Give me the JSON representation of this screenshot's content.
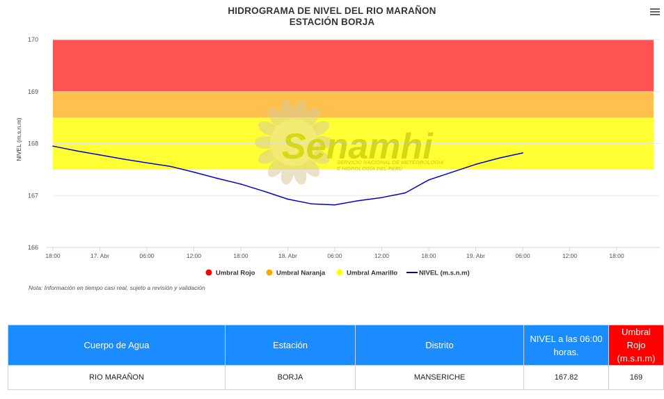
{
  "header": {
    "title_line1": "HIDROGRAMA DE NIVEL DEL RIO MARAÑON",
    "title_line2": "ESTACIÓN BORJA",
    "menu_icon": "hamburger-menu-icon"
  },
  "chart_data": {
    "type": "line",
    "ylabel": "NIVEL (m.s.n.m)",
    "ylim": [
      166,
      170
    ],
    "y_ticks": [
      "166",
      "167",
      "168",
      "169",
      "170"
    ],
    "x_range": [
      "2024-04-16 18:00",
      "2024-04-19 21:00"
    ],
    "x_ticks": [
      "18:00",
      "17. Abr",
      "06:00",
      "12:00",
      "18:00",
      "18. Abr",
      "06:00",
      "12:00",
      "18:00",
      "19. Abr",
      "06:00",
      "12:00",
      "18:00"
    ],
    "bands": [
      {
        "name": "Umbral Rojo",
        "from": 169,
        "to": 170,
        "color": "#ff5252"
      },
      {
        "name": "Umbral Naranja",
        "from": 168.5,
        "to": 169,
        "color": "#ffc04d"
      },
      {
        "name": "Umbral Amarillo",
        "from": 167.5,
        "to": 168.5,
        "color": "#ffff33"
      }
    ],
    "series": [
      {
        "name": "NIVEL (m.s.n.m)",
        "color": "#0000cc",
        "x": [
          "16 18:00",
          "16 21:00",
          "17 00:00",
          "17 03:00",
          "17 06:00",
          "17 09:00",
          "17 12:00",
          "17 15:00",
          "17 18:00",
          "17 21:00",
          "18 00:00",
          "18 03:00",
          "18 06:00",
          "18 09:00",
          "18 12:00",
          "18 15:00",
          "18 18:00",
          "18 21:00",
          "19 00:00",
          "19 03:00",
          "19 06:00"
        ],
        "values": [
          167.95,
          167.86,
          167.78,
          167.7,
          167.63,
          167.56,
          167.45,
          167.33,
          167.22,
          167.08,
          166.93,
          166.84,
          166.82,
          166.9,
          166.96,
          167.05,
          167.3,
          167.45,
          167.6,
          167.72,
          167.82
        ]
      }
    ],
    "legend": [
      {
        "label": "Umbral Rojo",
        "color": "#ff0000"
      },
      {
        "label": "Umbral Naranja",
        "color": "#ffa500"
      },
      {
        "label": "Umbral Amarillo",
        "color": "#ffff00"
      },
      {
        "label": "NIVEL (m.s.n.m)",
        "color": "#0000cc"
      }
    ],
    "legend_position": "bottom-center",
    "grid": true
  },
  "watermark": {
    "logo_text": "Senamhi",
    "logo_subtext_1": "SERVICIO NACIONAL DE METEOROLOGÍA",
    "logo_subtext_2": "E HIDROLOGÍA DEL PERÚ",
    "icon": "sun-logo-icon"
  },
  "note": "Nota: Información en tiempo casi real, sujeto a revisión y validación",
  "table": {
    "headers": [
      "Cuerpo de Agua",
      "Estación",
      "Distrito",
      "NIVEL a las 06:00 horas.",
      "Umbral Rojo (m.s.n.m)"
    ],
    "row": [
      "RIO MARAÑON",
      "BORJA",
      "MANSERICHE",
      "167.82",
      "169"
    ],
    "header_color": "#1a8cff",
    "header_alert_color": "#ff0000"
  }
}
